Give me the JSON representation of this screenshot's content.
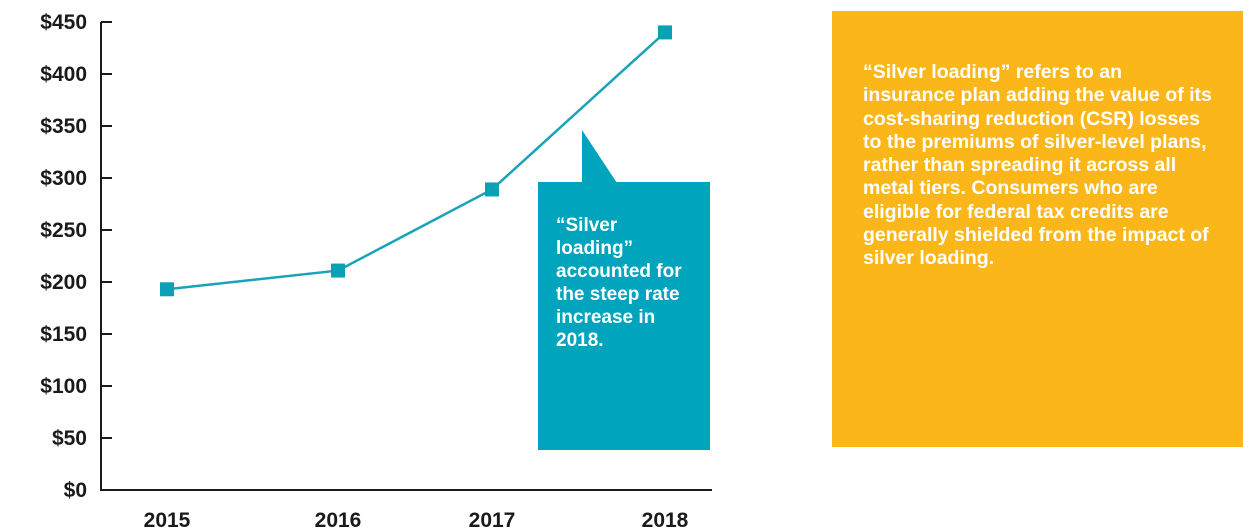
{
  "chart_data": {
    "type": "line",
    "categories": [
      "2015",
      "2016",
      "2017",
      "2018"
    ],
    "series": [
      {
        "values": [
          193,
          211,
          289,
          440
        ]
      }
    ],
    "y_ticks": [
      0,
      50,
      100,
      150,
      200,
      250,
      300,
      350,
      400,
      450
    ],
    "y_tick_labels": [
      "$0",
      "$50",
      "$100",
      "$150",
      "$200",
      "$250",
      "$300",
      "$350",
      "$400",
      "$450"
    ],
    "ylim": [
      0,
      450
    ],
    "grid": false,
    "line_color": "#1aa3b8",
    "marker_color": "#0aa0b6"
  },
  "callout": {
    "text": "“Silver loading” accounted for the steep rate increase in 2018.",
    "color": "#00a5bd"
  },
  "info_box": {
    "text": "“Silver loading” refers to an insurance plan adding the value of its cost-sharing reduction (CSR) losses to the premiums of silver-level plans, rather than spreading it across all metal tiers. Consumers who are eligible for federal tax credits are generally shielded from the impact of silver loading.",
    "color": "#fbb719"
  }
}
